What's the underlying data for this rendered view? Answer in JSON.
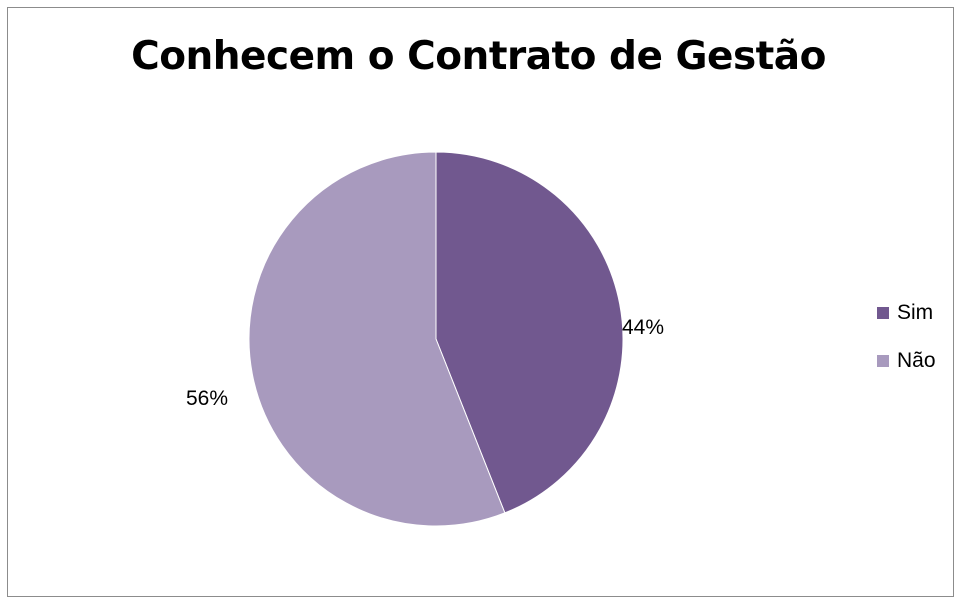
{
  "chart_data": {
    "type": "pie",
    "title": "Conhecem o Contrato de Gestão",
    "categories": [
      "Sim",
      "Não"
    ],
    "values": [
      44,
      56
    ],
    "data_labels": [
      "44%",
      "56%"
    ],
    "colors": [
      "#71588f",
      "#a89abe"
    ],
    "legend_position": "right"
  }
}
